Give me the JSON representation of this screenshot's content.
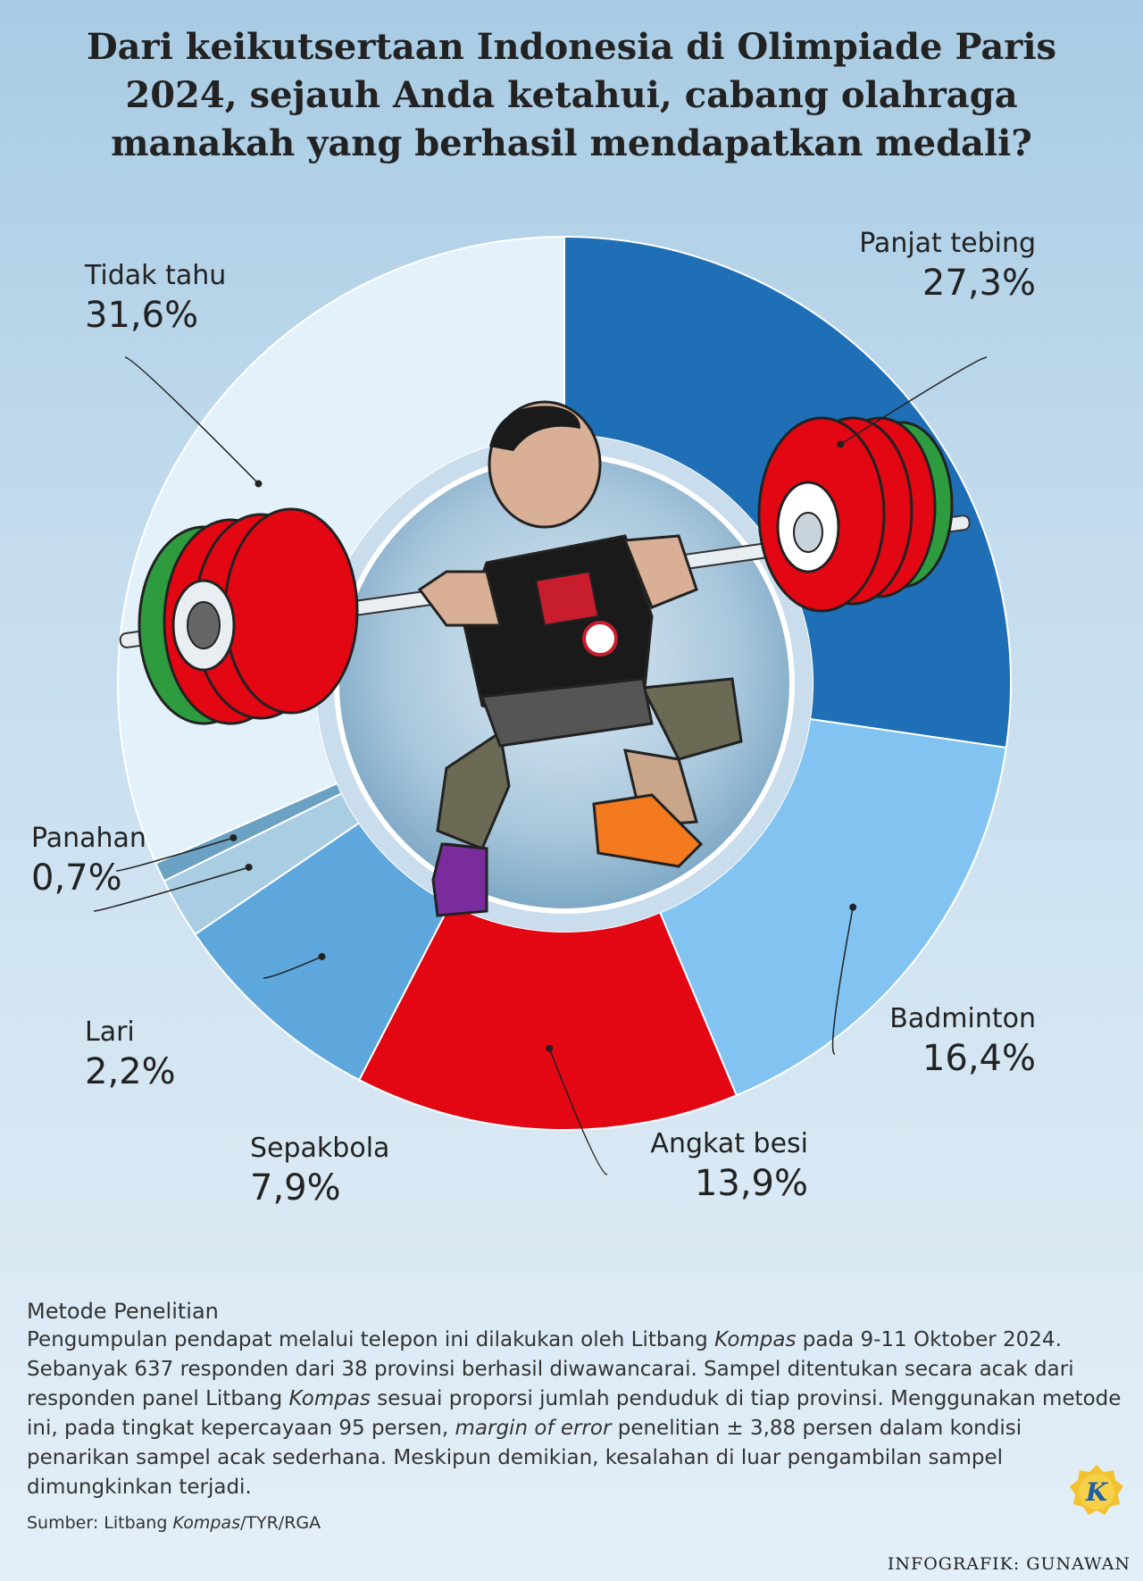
{
  "title": "Dari keikutsertaan Indonesia di Olimpiade Paris 2024, sejauh Anda ketahui, cabang olahraga manakah yang berhasil mendapatkan medali?",
  "chart_data": {
    "type": "pie",
    "title": "Dari keikutsertaan Indonesia di Olimpiade Paris 2024, sejauh Anda ketahui, cabang olahraga manakah yang berhasil mendapatkan medali?",
    "categories": [
      "Panjat tebing",
      "Badminton",
      "Angkat besi",
      "Sepakbola",
      "Lari",
      "Panahan",
      "Tidak tahu"
    ],
    "values": [
      27.3,
      16.4,
      13.9,
      7.9,
      2.2,
      0.7,
      31.6
    ],
    "value_labels": [
      "27,3%",
      "16,4%",
      "13,9%",
      "7,9%",
      "2,2%",
      "0,7%",
      "31,6%"
    ],
    "colors": [
      "#1f6fb7",
      "#82c3f1",
      "#e30613",
      "#5ea7dd",
      "#a9cde2",
      "#6ba1c2",
      "#e3f1fb"
    ]
  },
  "method": {
    "heading": "Metode Penelitian",
    "segments": [
      {
        "text": "Pengumpulan pendapat melalui telepon ini dilakukan oleh Litbang ",
        "italic": false
      },
      {
        "text": "Kompas",
        "italic": true
      },
      {
        "text": " pada 9-11 Oktober 2024. Sebanyak 637 responden dari 38 provinsi berhasil diwawancarai. Sampel ditentukan secara acak dari responden panel Litbang ",
        "italic": false
      },
      {
        "text": "Kompas",
        "italic": true
      },
      {
        "text": " sesuai proporsi jumlah penduduk di tiap provinsi. Menggunakan metode ini, pada tingkat kepercayaan 95 persen, ",
        "italic": false
      },
      {
        "text": "margin of error",
        "italic": true
      },
      {
        "text": " penelitian ± 3,88 persen dalam kondisi penarikan sampel acak sederhana. Meskipun demikian, kesalahan di luar pengambilan sampel dimungkinkan terjadi.",
        "italic": false
      }
    ]
  },
  "source": {
    "prefix": "Sumber: Litbang ",
    "italic": "Kompas",
    "suffix": "/TYR/RGA"
  },
  "credit": "INFOGRAFIK: GUNAWAN",
  "logo_letter": "K"
}
